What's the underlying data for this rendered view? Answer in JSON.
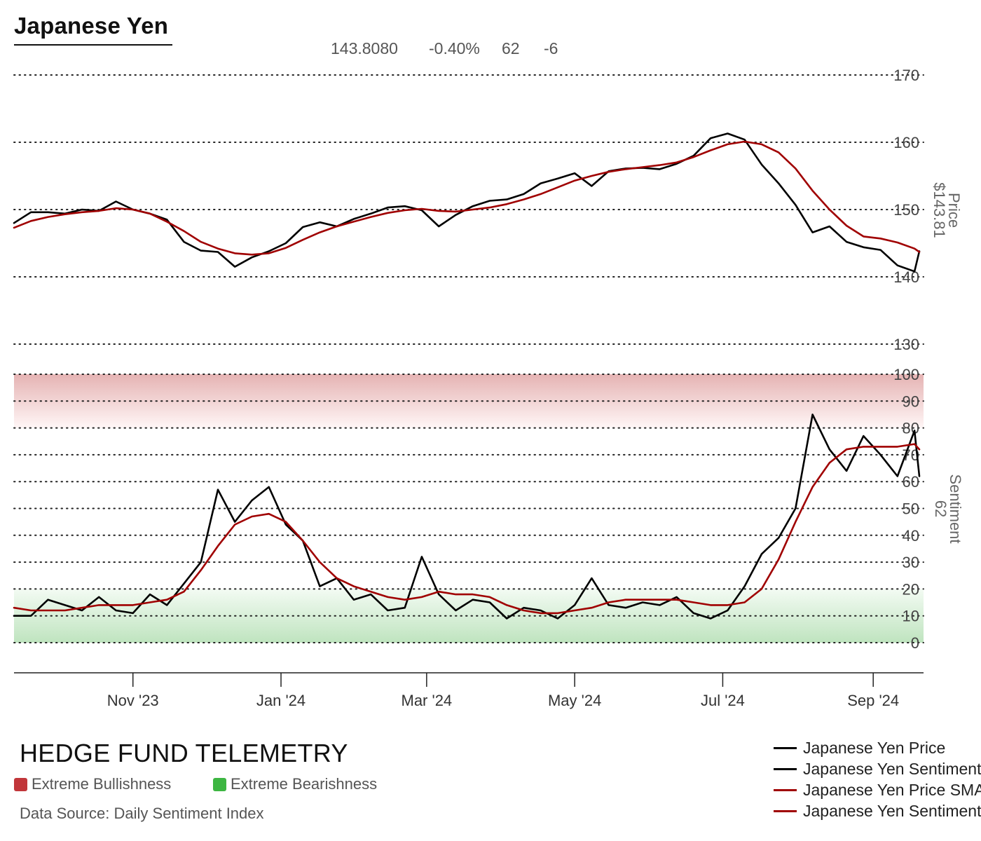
{
  "header": {
    "title": "Japanese Yen",
    "price": "143.8080",
    "change_pct": "-0.40%",
    "sentiment": "62",
    "sentiment_change": "-6"
  },
  "price_axis": {
    "title": "Price",
    "current": "$143.81"
  },
  "sentiment_axis": {
    "title": "Sentiment",
    "current": "62"
  },
  "brand": "HEDGE FUND TELEMETRY",
  "zone_legend": [
    {
      "label": "Extreme Bullishness",
      "color": "#c1363a"
    },
    {
      "label": "Extreme Bearishness",
      "color": "#3db642"
    }
  ],
  "source": "Data Source: Daily Sentiment Index",
  "series_legend": [
    {
      "label": "Japanese Yen Price",
      "color": "#000000"
    },
    {
      "label": "Japanese Yen Sentiment",
      "color": "#000000"
    },
    {
      "label": "Japanese Yen Price SMA",
      "color": "#a00000"
    },
    {
      "label": "Japanese Yen Sentiment SMA",
      "color": "#a00000"
    }
  ],
  "chart_data": [
    {
      "type": "line",
      "title": "Japanese Yen Price",
      "ylim": [
        130,
        170
      ],
      "yticks": [
        130,
        140,
        150,
        160,
        170
      ],
      "xticks": [
        "Nov '23",
        "Jan '24",
        "Mar '24",
        "May '24",
        "Jul '24",
        "Sep '24"
      ],
      "x": [
        "2023-09-13",
        "2023-09-20",
        "2023-09-27",
        "2023-10-04",
        "2023-10-11",
        "2023-10-18",
        "2023-10-25",
        "2023-11-01",
        "2023-11-08",
        "2023-11-15",
        "2023-11-22",
        "2023-11-29",
        "2023-12-06",
        "2023-12-13",
        "2023-12-20",
        "2023-12-27",
        "2024-01-03",
        "2024-01-10",
        "2024-01-17",
        "2024-01-24",
        "2024-01-31",
        "2024-02-07",
        "2024-02-14",
        "2024-02-21",
        "2024-02-28",
        "2024-03-06",
        "2024-03-13",
        "2024-03-20",
        "2024-03-27",
        "2024-04-03",
        "2024-04-10",
        "2024-04-17",
        "2024-04-24",
        "2024-05-01",
        "2024-05-08",
        "2024-05-15",
        "2024-05-22",
        "2024-05-29",
        "2024-06-05",
        "2024-06-12",
        "2024-06-19",
        "2024-06-26",
        "2024-07-03",
        "2024-07-10",
        "2024-07-17",
        "2024-07-24",
        "2024-07-31",
        "2024-08-07",
        "2024-08-14",
        "2024-08-21",
        "2024-08-28",
        "2024-09-04",
        "2024-09-11",
        "2024-09-18",
        "2024-09-20"
      ],
      "series": [
        {
          "name": "Japanese Yen Price",
          "color": "#000000",
          "values": [
            148.0,
            149.6,
            149.6,
            149.4,
            150.0,
            149.8,
            151.2,
            150.0,
            149.4,
            148.5,
            145.2,
            143.9,
            143.7,
            141.5,
            142.9,
            143.8,
            145.0,
            147.4,
            148.1,
            147.5,
            148.6,
            149.4,
            150.3,
            150.5,
            149.9,
            147.5,
            149.2,
            150.5,
            151.3,
            151.5,
            152.3,
            153.9,
            154.6,
            155.4,
            153.5,
            155.7,
            156.1,
            156.2,
            156.0,
            156.8,
            158.0,
            160.6,
            161.3,
            160.4,
            156.7,
            153.9,
            150.7,
            146.6,
            147.5,
            145.2,
            144.4,
            144.0,
            141.7,
            140.8,
            143.8
          ]
        },
        {
          "name": "Japanese Yen Price SMA",
          "color": "#a00000",
          "values": [
            147.3,
            148.3,
            148.9,
            149.3,
            149.6,
            149.8,
            150.2,
            150.0,
            149.4,
            148.2,
            146.8,
            145.2,
            144.2,
            143.5,
            143.3,
            143.5,
            144.3,
            145.5,
            146.6,
            147.5,
            148.2,
            148.9,
            149.5,
            149.9,
            150.1,
            149.8,
            149.7,
            150.0,
            150.3,
            150.8,
            151.5,
            152.3,
            153.3,
            154.3,
            155.0,
            155.6,
            156.0,
            156.3,
            156.6,
            157.0,
            157.8,
            158.8,
            159.7,
            160.1,
            159.7,
            158.5,
            156.1,
            152.8,
            150.0,
            147.6,
            146.0,
            145.7,
            145.1,
            144.2,
            143.7
          ]
        }
      ]
    },
    {
      "type": "line",
      "title": "Japanese Yen Sentiment",
      "ylim": [
        0,
        100
      ],
      "yticks": [
        0,
        10,
        20,
        30,
        40,
        50,
        60,
        70,
        80,
        90,
        100
      ],
      "xticks": [
        "Nov '23",
        "Jan '24",
        "Mar '24",
        "May '24",
        "Jul '24",
        "Sep '24"
      ],
      "x": [
        "2023-09-13",
        "2023-09-20",
        "2023-09-27",
        "2023-10-04",
        "2023-10-11",
        "2023-10-18",
        "2023-10-25",
        "2023-11-01",
        "2023-11-08",
        "2023-11-15",
        "2023-11-22",
        "2023-11-29",
        "2023-12-06",
        "2023-12-13",
        "2023-12-20",
        "2023-12-27",
        "2024-01-03",
        "2024-01-10",
        "2024-01-17",
        "2024-01-24",
        "2024-01-31",
        "2024-02-07",
        "2024-02-14",
        "2024-02-21",
        "2024-02-28",
        "2024-03-06",
        "2024-03-13",
        "2024-03-20",
        "2024-03-27",
        "2024-04-03",
        "2024-04-10",
        "2024-04-17",
        "2024-04-24",
        "2024-05-01",
        "2024-05-08",
        "2024-05-15",
        "2024-05-22",
        "2024-05-29",
        "2024-06-05",
        "2024-06-12",
        "2024-06-19",
        "2024-06-26",
        "2024-07-03",
        "2024-07-10",
        "2024-07-17",
        "2024-07-24",
        "2024-07-31",
        "2024-08-07",
        "2024-08-14",
        "2024-08-21",
        "2024-08-28",
        "2024-09-04",
        "2024-09-11",
        "2024-09-18",
        "2024-09-20"
      ],
      "zones": [
        {
          "name": "Extreme Bullishness",
          "from": 80,
          "to": 100,
          "color": "#c1363a"
        },
        {
          "name": "Extreme Bearishness",
          "from": 0,
          "to": 20,
          "color": "#3db642"
        }
      ],
      "series": [
        {
          "name": "Japanese Yen Sentiment",
          "color": "#000000",
          "values": [
            10,
            10,
            16,
            14,
            12,
            17,
            12,
            11,
            18,
            14,
            22,
            30,
            57,
            45,
            53,
            58,
            44,
            38,
            21,
            24,
            16,
            18,
            12,
            13,
            32,
            18,
            12,
            16,
            15,
            9,
            13,
            12,
            9,
            14,
            24,
            14,
            13,
            15,
            14,
            17,
            11,
            9,
            12,
            21,
            33,
            39,
            50,
            85,
            72,
            64,
            77,
            70,
            62,
            79,
            62
          ]
        },
        {
          "name": "Japanese Yen Sentiment SMA",
          "color": "#a00000",
          "values": [
            13,
            12,
            12,
            12,
            13,
            14,
            14,
            14,
            15,
            16,
            19,
            27,
            36,
            44,
            47,
            48,
            45,
            38,
            30,
            24,
            21,
            19,
            17,
            16,
            17,
            19,
            18,
            18,
            17,
            14,
            12,
            11,
            11,
            12,
            13,
            15,
            16,
            16,
            16,
            16,
            15,
            14,
            14,
            15,
            20,
            31,
            45,
            58,
            67,
            72,
            73,
            73,
            73,
            74,
            72
          ]
        }
      ]
    }
  ]
}
